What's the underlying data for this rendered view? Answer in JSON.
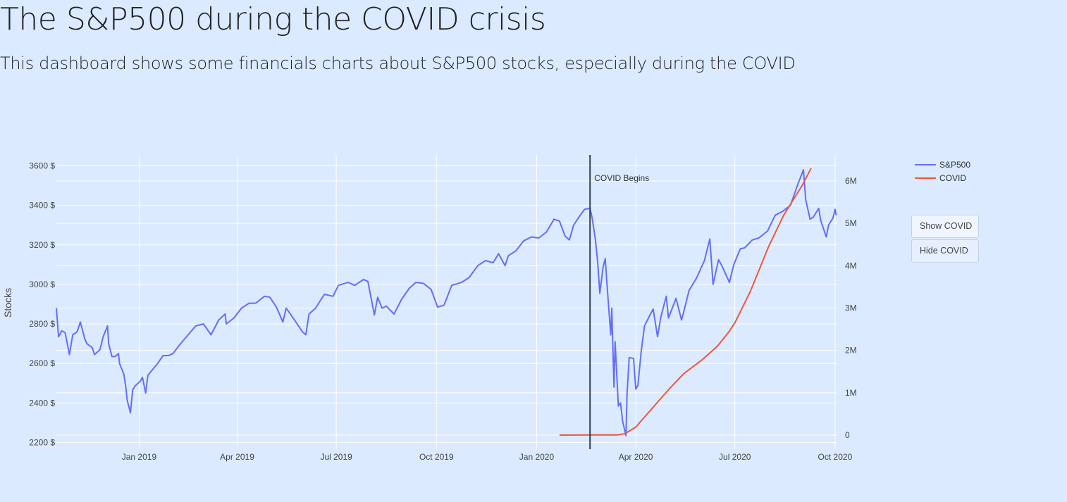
{
  "header": {
    "title": "The S&P500 during the COVID crisis",
    "subtitle": "This dashboard shows some financials charts about S&P500 stocks, especially during the COVID"
  },
  "controls": {
    "show_label": "Show COVID",
    "hide_label": "Hide COVID"
  },
  "chart_data": {
    "type": "line",
    "ylabel": "Stocks",
    "x_range": [
      "2018-10-17",
      "2020-10-03"
    ],
    "x_ticks": [
      {
        "date": "2019-01-01",
        "label": "Jan 2019"
      },
      {
        "date": "2019-04-01",
        "label": "Apr 2019"
      },
      {
        "date": "2019-07-01",
        "label": "Jul 2019"
      },
      {
        "date": "2019-10-01",
        "label": "Oct 2019"
      },
      {
        "date": "2020-01-01",
        "label": "Jan 2020"
      },
      {
        "date": "2020-04-01",
        "label": "Apr 2020"
      },
      {
        "date": "2020-07-01",
        "label": "Jul 2020"
      },
      {
        "date": "2020-10-01",
        "label": "Oct 2020"
      }
    ],
    "y_left": {
      "range": [
        2200,
        3650
      ],
      "ticks": [
        2200,
        2400,
        2600,
        2800,
        3000,
        3200,
        3400,
        3600
      ],
      "tick_labels": [
        "2200 $",
        "2400 $",
        "2600 $",
        "2800 $",
        "3000 $",
        "3200 $",
        "3400 $",
        "3600 $"
      ]
    },
    "y_right": {
      "range": [
        -30000,
        6200000
      ],
      "ticks": [
        0,
        1000000,
        2000000,
        3000000,
        4000000,
        5000000,
        6000000
      ],
      "tick_labels": [
        "0",
        "1M",
        "2M",
        "3M",
        "4M",
        "5M",
        "6M"
      ]
    },
    "grid": true,
    "legend_position": "top-right",
    "colors": {
      "sp500": "#636efa",
      "covid": "#ef553b",
      "annotation_line": "#2a3f5f"
    },
    "annotation": {
      "date": "2020-02-19",
      "text": "COVID Begins"
    },
    "series": [
      {
        "name": "S&P500",
        "axis": "left",
        "points": [
          [
            "2018-10-17",
            2880
          ],
          [
            "2018-10-19",
            2735
          ],
          [
            "2018-10-22",
            2765
          ],
          [
            "2018-10-25",
            2755
          ],
          [
            "2018-10-29",
            2645
          ],
          [
            "2018-11-01",
            2745
          ],
          [
            "2018-11-05",
            2760
          ],
          [
            "2018-11-08",
            2810
          ],
          [
            "2018-11-12",
            2725
          ],
          [
            "2018-11-14",
            2700
          ],
          [
            "2018-11-19",
            2680
          ],
          [
            "2018-11-21",
            2645
          ],
          [
            "2018-11-26",
            2670
          ],
          [
            "2018-11-29",
            2735
          ],
          [
            "2018-12-03",
            2790
          ],
          [
            "2018-12-04",
            2700
          ],
          [
            "2018-12-07",
            2635
          ],
          [
            "2018-12-10",
            2635
          ],
          [
            "2018-12-13",
            2650
          ],
          [
            "2018-12-14",
            2600
          ],
          [
            "2018-12-18",
            2545
          ],
          [
            "2018-12-20",
            2470
          ],
          [
            "2018-12-21",
            2415
          ],
          [
            "2018-12-24",
            2350
          ],
          [
            "2018-12-26",
            2465
          ],
          [
            "2018-12-28",
            2485
          ],
          [
            "2019-01-02",
            2510
          ],
          [
            "2019-01-04",
            2530
          ],
          [
            "2019-01-07",
            2450
          ],
          [
            "2019-01-09",
            2540
          ],
          [
            "2019-01-15",
            2580
          ],
          [
            "2019-01-18",
            2600
          ],
          [
            "2019-01-23",
            2640
          ],
          [
            "2019-01-28",
            2640
          ],
          [
            "2019-02-01",
            2650
          ],
          [
            "2019-02-08",
            2700
          ],
          [
            "2019-02-15",
            2745
          ],
          [
            "2019-02-22",
            2790
          ],
          [
            "2019-03-01",
            2800
          ],
          [
            "2019-03-08",
            2745
          ],
          [
            "2019-03-15",
            2820
          ],
          [
            "2019-03-21",
            2850
          ],
          [
            "2019-03-22",
            2800
          ],
          [
            "2019-03-29",
            2830
          ],
          [
            "2019-04-05",
            2880
          ],
          [
            "2019-04-12",
            2905
          ],
          [
            "2019-04-18",
            2905
          ],
          [
            "2019-04-26",
            2940
          ],
          [
            "2019-05-01",
            2935
          ],
          [
            "2019-05-07",
            2885
          ],
          [
            "2019-05-13",
            2810
          ],
          [
            "2019-05-16",
            2880
          ],
          [
            "2019-05-23",
            2825
          ],
          [
            "2019-05-31",
            2760
          ],
          [
            "2019-06-03",
            2745
          ],
          [
            "2019-06-06",
            2850
          ],
          [
            "2019-06-12",
            2880
          ],
          [
            "2019-06-20",
            2950
          ],
          [
            "2019-06-28",
            2940
          ],
          [
            "2019-07-03",
            2995
          ],
          [
            "2019-07-12",
            3010
          ],
          [
            "2019-07-18",
            2995
          ],
          [
            "2019-07-26",
            3025
          ],
          [
            "2019-07-30",
            3015
          ],
          [
            "2019-08-02",
            2930
          ],
          [
            "2019-08-05",
            2845
          ],
          [
            "2019-08-08",
            2935
          ],
          [
            "2019-08-12",
            2880
          ],
          [
            "2019-08-16",
            2890
          ],
          [
            "2019-08-23",
            2850
          ],
          [
            "2019-08-30",
            2925
          ],
          [
            "2019-09-06",
            2980
          ],
          [
            "2019-09-12",
            3010
          ],
          [
            "2019-09-19",
            3005
          ],
          [
            "2019-09-26",
            2975
          ],
          [
            "2019-10-02",
            2885
          ],
          [
            "2019-10-08",
            2895
          ],
          [
            "2019-10-15",
            2995
          ],
          [
            "2019-10-24",
            3010
          ],
          [
            "2019-10-31",
            3035
          ],
          [
            "2019-11-08",
            3095
          ],
          [
            "2019-11-15",
            3120
          ],
          [
            "2019-11-22",
            3110
          ],
          [
            "2019-11-27",
            3155
          ],
          [
            "2019-12-03",
            3095
          ],
          [
            "2019-12-06",
            3145
          ],
          [
            "2019-12-13",
            3170
          ],
          [
            "2019-12-20",
            3220
          ],
          [
            "2019-12-27",
            3240
          ],
          [
            "2020-01-03",
            3235
          ],
          [
            "2020-01-10",
            3265
          ],
          [
            "2020-01-17",
            3330
          ],
          [
            "2020-01-22",
            3320
          ],
          [
            "2020-01-27",
            3245
          ],
          [
            "2020-01-31",
            3225
          ],
          [
            "2020-02-04",
            3300
          ],
          [
            "2020-02-10",
            3350
          ],
          [
            "2020-02-14",
            3380
          ],
          [
            "2020-02-19",
            3385
          ],
          [
            "2020-02-21",
            3335
          ],
          [
            "2020-02-24",
            3225
          ],
          [
            "2020-02-26",
            3115
          ],
          [
            "2020-02-28",
            2955
          ],
          [
            "2020-03-02",
            3090
          ],
          [
            "2020-03-04",
            3130
          ],
          [
            "2020-03-06",
            2970
          ],
          [
            "2020-03-09",
            2745
          ],
          [
            "2020-03-10",
            2880
          ],
          [
            "2020-03-12",
            2480
          ],
          [
            "2020-03-13",
            2710
          ],
          [
            "2020-03-16",
            2385
          ],
          [
            "2020-03-18",
            2400
          ],
          [
            "2020-03-20",
            2305
          ],
          [
            "2020-03-23",
            2235
          ],
          [
            "2020-03-24",
            2450
          ],
          [
            "2020-03-26",
            2630
          ],
          [
            "2020-03-30",
            2625
          ],
          [
            "2020-04-01",
            2470
          ],
          [
            "2020-04-03",
            2490
          ],
          [
            "2020-04-06",
            2660
          ],
          [
            "2020-04-09",
            2790
          ],
          [
            "2020-04-14",
            2845
          ],
          [
            "2020-04-17",
            2875
          ],
          [
            "2020-04-21",
            2735
          ],
          [
            "2020-04-24",
            2835
          ],
          [
            "2020-04-29",
            2940
          ],
          [
            "2020-05-01",
            2830
          ],
          [
            "2020-05-08",
            2930
          ],
          [
            "2020-05-13",
            2820
          ],
          [
            "2020-05-15",
            2860
          ],
          [
            "2020-05-20",
            2970
          ],
          [
            "2020-05-27",
            3035
          ],
          [
            "2020-06-03",
            3120
          ],
          [
            "2020-06-08",
            3230
          ],
          [
            "2020-06-11",
            3000
          ],
          [
            "2020-06-16",
            3125
          ],
          [
            "2020-06-19",
            3095
          ],
          [
            "2020-06-26",
            3010
          ],
          [
            "2020-06-30",
            3100
          ],
          [
            "2020-07-06",
            3180
          ],
          [
            "2020-07-10",
            3185
          ],
          [
            "2020-07-17",
            3225
          ],
          [
            "2020-07-23",
            3235
          ],
          [
            "2020-07-31",
            3270
          ],
          [
            "2020-08-07",
            3350
          ],
          [
            "2020-08-14",
            3370
          ],
          [
            "2020-08-21",
            3400
          ],
          [
            "2020-08-28",
            3510
          ],
          [
            "2020-09-02",
            3580
          ],
          [
            "2020-09-04",
            3430
          ],
          [
            "2020-09-08",
            3330
          ],
          [
            "2020-09-11",
            3340
          ],
          [
            "2020-09-16",
            3385
          ],
          [
            "2020-09-18",
            3320
          ],
          [
            "2020-09-23",
            3240
          ],
          [
            "2020-09-25",
            3300
          ],
          [
            "2020-09-29",
            3335
          ],
          [
            "2020-10-01",
            3380
          ],
          [
            "2020-10-02",
            3350
          ]
        ]
      },
      {
        "name": "COVID",
        "axis": "right",
        "points": [
          [
            "2020-01-22",
            550
          ],
          [
            "2020-02-22",
            3500
          ],
          [
            "2020-03-15",
            3500
          ],
          [
            "2020-03-22",
            33000
          ],
          [
            "2020-04-01",
            190000
          ],
          [
            "2020-04-15",
            600000
          ],
          [
            "2020-05-01",
            1070000
          ],
          [
            "2020-05-15",
            1450000
          ],
          [
            "2020-06-01",
            1780000
          ],
          [
            "2020-06-15",
            2100000
          ],
          [
            "2020-06-25",
            2420000
          ],
          [
            "2020-07-01",
            2650000
          ],
          [
            "2020-07-15",
            3380000
          ],
          [
            "2020-08-01",
            4450000
          ],
          [
            "2020-08-15",
            5200000
          ],
          [
            "2020-09-01",
            5900000
          ],
          [
            "2020-09-09",
            6300000
          ]
        ]
      }
    ]
  }
}
